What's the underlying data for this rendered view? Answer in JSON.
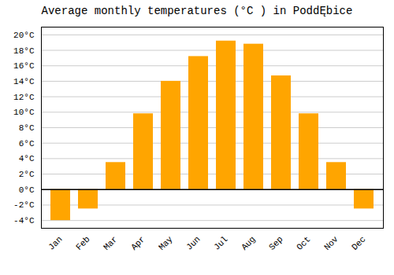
{
  "chart_data": {
    "type": "bar",
    "title": "Average monthly temperatures (°C ) in PoddĘbice",
    "categories": [
      "Jan",
      "Feb",
      "Mar",
      "Apr",
      "May",
      "Jun",
      "Jul",
      "Aug",
      "Sep",
      "Oct",
      "Nov",
      "Dec"
    ],
    "values": [
      -4.0,
      -2.5,
      3.5,
      9.8,
      14.0,
      17.2,
      19.2,
      18.8,
      14.7,
      9.8,
      3.5,
      -2.5
    ],
    "color": "#FFA500",
    "ylim": [
      -5,
      21
    ],
    "yticks": [
      {
        "value": -4,
        "label": "-4°C"
      },
      {
        "value": -2,
        "label": "-2°C"
      },
      {
        "value": 0,
        "label": "0°C"
      },
      {
        "value": 2,
        "label": "2°C"
      },
      {
        "value": 4,
        "label": "4°C"
      },
      {
        "value": 6,
        "label": "6°C"
      },
      {
        "value": 8,
        "label": "8°C"
      },
      {
        "value": 10,
        "label": "10°C"
      },
      {
        "value": 12,
        "label": "12°C"
      },
      {
        "value": 14,
        "label": "14°C"
      },
      {
        "value": 16,
        "label": "16°C"
      },
      {
        "value": 18,
        "label": "18°C"
      },
      {
        "value": 20,
        "label": "20°C"
      }
    ],
    "grid": true
  }
}
